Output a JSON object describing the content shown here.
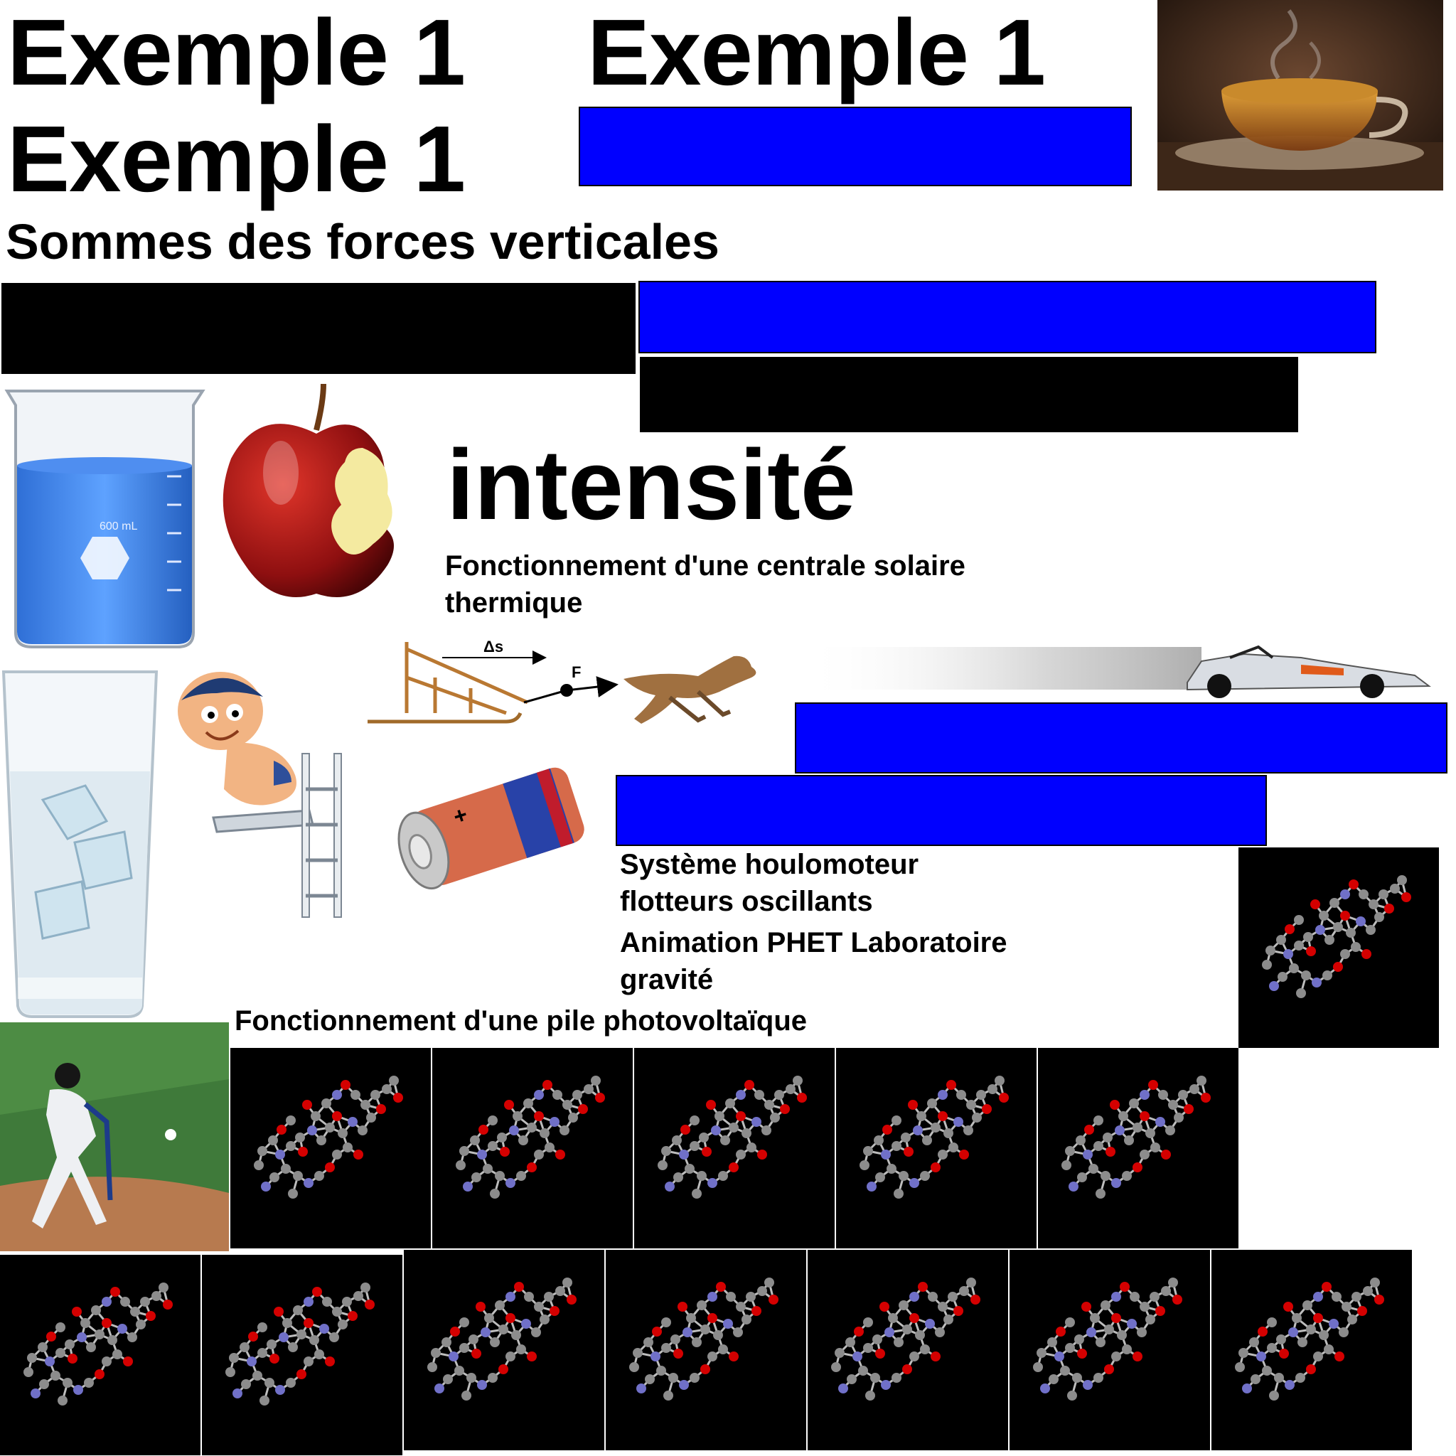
{
  "headings": {
    "example_a": "Exemple 1",
    "example_b": "Exemple 1",
    "example_c": "Exemple 1",
    "forces": "Sommes des forces verticales",
    "intensity": "intensité"
  },
  "captions": {
    "solar_thermal": "Fonctionnement d'une centrale solaire thermique",
    "wave_system": "Système houlomoteur flotteurs oscillants",
    "phet_gravity": "Animation PHET Laboratoire gravité",
    "photovoltaic": "Fonctionnement d'une pile photovoltaïque"
  },
  "diagram": {
    "displacement_label": "Δs",
    "force_label": "F"
  },
  "beaker": {
    "volume_label": "600 mL"
  },
  "colors": {
    "blue_block": "#0000ff",
    "black_block": "#000000",
    "molecule_carbon": "#8c8c8c",
    "molecule_oxygen": "#d40000",
    "molecule_nitrogen": "#7070c8"
  },
  "icons": [
    "tea-cup-photo",
    "beaker-icon",
    "bitten-apple-icon",
    "ice-water-glass-icon",
    "diver-boy-icon",
    "battery-icon",
    "sled-dog-icon",
    "race-car-icon",
    "baseball-batter-photo",
    "molecule-icon"
  ]
}
